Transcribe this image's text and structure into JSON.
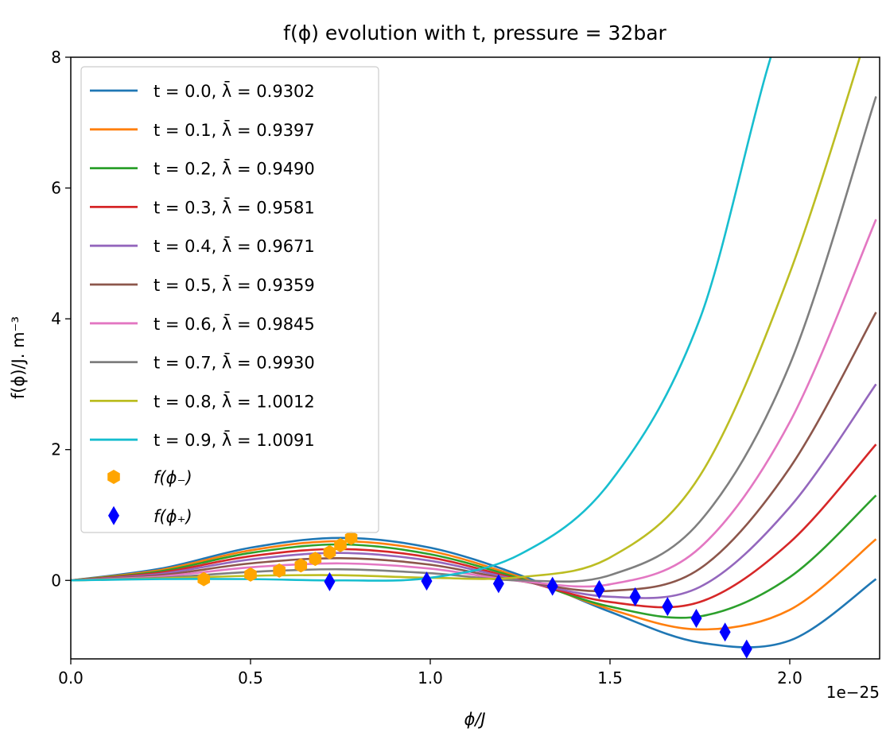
{
  "chart_data": {
    "type": "line",
    "title": "f(ϕ) evolution with t, pressure = 32bar",
    "xlabel": "ϕ/J",
    "ylabel": "f(ϕ)/J. m⁻³",
    "x_offset_label": "1e−25",
    "xlim": [
      0.0,
      2.25
    ],
    "ylim": [
      -1.2,
      8.0
    ],
    "xticks": [
      "0.0",
      "0.5",
      "1.0",
      "1.5",
      "2.0"
    ],
    "yticks": [
      "0",
      "2",
      "4",
      "6",
      "8"
    ],
    "legend_position": "top-left",
    "grid": false,
    "x": [
      0.0,
      0.25,
      0.5,
      0.75,
      1.0,
      1.25,
      1.5,
      1.75,
      2.0,
      2.24
    ],
    "series": [
      {
        "name": "t = 0.0, λ̄ = 0.9302",
        "color": "#1f77b4",
        "values": [
          0.0,
          0.18,
          0.5,
          0.65,
          0.5,
          0.08,
          -0.48,
          -0.95,
          -0.92,
          0.02
        ]
      },
      {
        "name": "t = 0.1, λ̄ = 0.9397",
        "color": "#ff7f0e",
        "values": [
          0.0,
          0.16,
          0.46,
          0.6,
          0.45,
          0.05,
          -0.44,
          -0.75,
          -0.45,
          0.63
        ]
      },
      {
        "name": "t = 0.2, λ̄ = 0.9490",
        "color": "#2ca02c",
        "values": [
          0.0,
          0.14,
          0.42,
          0.55,
          0.4,
          0.03,
          -0.4,
          -0.55,
          0.05,
          1.3
        ]
      },
      {
        "name": "t = 0.3, λ̄ = 0.9581",
        "color": "#d62728",
        "values": [
          0.0,
          0.12,
          0.37,
          0.48,
          0.35,
          0.01,
          -0.33,
          -0.33,
          0.58,
          2.08
        ]
      },
      {
        "name": "t = 0.4, λ̄ = 0.9671",
        "color": "#9467bd",
        "values": [
          0.0,
          0.1,
          0.32,
          0.42,
          0.3,
          0.0,
          -0.25,
          -0.1,
          1.12,
          3.0
        ]
      },
      {
        "name": "t = 0.5, λ̄ = 0.9359",
        "color": "#8c564b",
        "values": [
          0.0,
          0.08,
          0.26,
          0.34,
          0.24,
          -0.01,
          -0.16,
          0.18,
          1.72,
          4.1
        ]
      },
      {
        "name": "t = 0.6, λ̄ = 0.9845",
        "color": "#e377c2",
        "values": [
          0.0,
          0.06,
          0.2,
          0.26,
          0.18,
          -0.01,
          -0.06,
          0.5,
          2.42,
          5.52
        ]
      },
      {
        "name": "t = 0.7, λ̄ = 0.9930",
        "color": "#7f7f7f",
        "values": [
          0.0,
          0.04,
          0.13,
          0.17,
          0.11,
          0.0,
          0.08,
          0.9,
          3.3,
          7.4
        ]
      },
      {
        "name": "t = 0.8, λ̄ = 1.0012",
        "color": "#bcbd22",
        "values": [
          0.0,
          0.03,
          0.07,
          0.08,
          0.04,
          0.05,
          0.35,
          1.6,
          4.7,
          8.8
        ]
      },
      {
        "name": "t = 0.9, λ̄ = 1.0091",
        "color": "#17becf",
        "values": [
          0.0,
          0.02,
          0.02,
          0.0,
          0.04,
          0.4,
          1.5,
          4.0,
          8.8,
          9.5
        ]
      }
    ],
    "markers": [
      {
        "name": "f(ϕ₋)",
        "color": "#ffa500",
        "shape": "hexagon",
        "points": [
          [
            0.37,
            0.02
          ],
          [
            0.5,
            0.09
          ],
          [
            0.58,
            0.15
          ],
          [
            0.64,
            0.23
          ],
          [
            0.68,
            0.33
          ],
          [
            0.72,
            0.43
          ],
          [
            0.75,
            0.54
          ],
          [
            0.78,
            0.65
          ]
        ]
      },
      {
        "name": "f(ϕ₊)",
        "color": "#0000ff",
        "shape": "diamond",
        "points": [
          [
            0.72,
            -0.02
          ],
          [
            0.99,
            -0.01
          ],
          [
            1.19,
            -0.05
          ],
          [
            1.34,
            -0.09
          ],
          [
            1.47,
            -0.14
          ],
          [
            1.57,
            -0.25
          ],
          [
            1.66,
            -0.4
          ],
          [
            1.74,
            -0.58
          ],
          [
            1.82,
            -0.79
          ],
          [
            1.88,
            -1.05
          ]
        ]
      }
    ]
  }
}
